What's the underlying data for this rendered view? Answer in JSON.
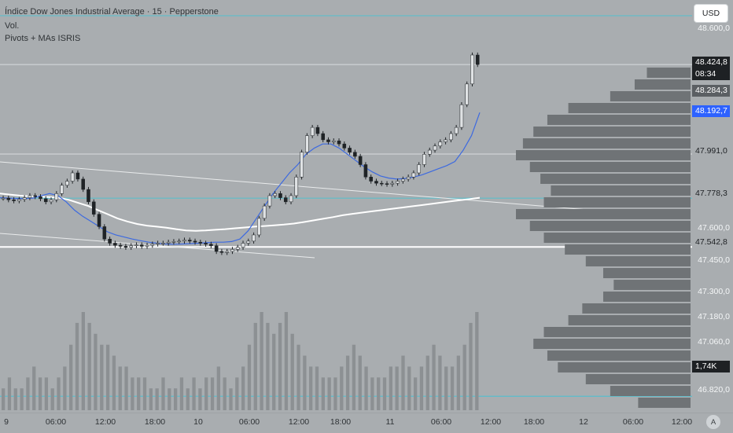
{
  "header": {
    "symbol_title": "Índice Dow Jones Industrial Average · 15 · Pepperstone",
    "indicator_1": "Vol.",
    "indicator_2": "Pivots + MAs ISRIS"
  },
  "currency_button": "USD",
  "auto_scale_label": "A",
  "price_axis": {
    "ticks": [
      "48.600,0",
      "47.991,0",
      "47.600,0",
      "47.450,0",
      "47.300,0",
      "47.180,0",
      "47.060,0",
      "46.820,0"
    ],
    "tags": {
      "last_price": "48.424,8",
      "countdown": "08:34",
      "pivot_r1": "48.284,3",
      "ma_blue": "48.192,7",
      "level_1": "47.991,0",
      "level_2": "47.778,3",
      "level_3": "47.542,8",
      "volume": "1,74K"
    }
  },
  "time_axis": {
    "labels": [
      "9",
      "06:00",
      "12:00",
      "18:00",
      "10",
      "06:00",
      "12:00",
      "18:00",
      "11",
      "06:00",
      "12:00",
      "18:00",
      "12",
      "06:00",
      "12:00"
    ]
  },
  "colors": {
    "background": "#a9adb0",
    "candle": "#1f2326",
    "ma_blue": "#3d6ae0",
    "ma_white": "#ffffff",
    "cyan_line": "#38c6d8",
    "volume_bar": "#8c9093",
    "profile_bar": "#6f7376",
    "tag_dark": "#1e2124",
    "tag_blue": "#2e62ff"
  },
  "chart_data": {
    "type": "candlestick",
    "close_series": [
      47778,
      47770,
      47765,
      47772,
      47780,
      47790,
      47785,
      47775,
      47760,
      47770,
      47800,
      47840,
      47860,
      47900,
      47870,
      47820,
      47760,
      47700,
      47640,
      47580,
      47560,
      47550,
      47545,
      47540,
      47548,
      47552,
      47545,
      47550,
      47556,
      47560,
      47560,
      47565,
      47568,
      47570,
      47575,
      47570,
      47565,
      47560,
      47555,
      47548,
      47520,
      47515,
      47520,
      47530,
      47540,
      47560,
      47570,
      47600,
      47680,
      47740,
      47790,
      47800,
      47780,
      47760,
      47790,
      47880,
      48000,
      48080,
      48120,
      48090,
      48060,
      48050,
      48055,
      48040,
      48020,
      48000,
      47980,
      47940,
      47880,
      47860,
      47850,
      47848,
      47845,
      47850,
      47860,
      47870,
      47880,
      47900,
      47940,
      47990,
      48010,
      48030,
      48050,
      48060,
      48090,
      48120,
      48230,
      48330,
      48470,
      48424
    ],
    "ma_blue": [
      47780,
      47778,
      47776,
      47776,
      47778,
      47790,
      47800,
      47790,
      47760,
      47720,
      47690,
      47665,
      47640,
      47615,
      47600,
      47590,
      47580,
      47572,
      47565,
      47560,
      47556,
      47555,
      47556,
      47558,
      47560,
      47562,
      47565,
      47565,
      47568,
      47580,
      47620,
      47680,
      47740,
      47800,
      47850,
      47900,
      47940,
      47990,
      48020,
      48040,
      48040,
      48020,
      47990,
      47960,
      47930,
      47905,
      47885,
      47875,
      47870,
      47873,
      47880,
      47890,
      47905,
      47920,
      47935,
      47955,
      48010,
      48080,
      48192
    ],
    "ma_white": [
      47800,
      47795,
      47790,
      47787,
      47785,
      47783,
      47780,
      47770,
      47755,
      47740,
      47720,
      47700,
      47680,
      47665,
      47653,
      47645,
      47640,
      47635,
      47628,
      47622,
      47620,
      47622,
      47625,
      47628,
      47632,
      47636,
      47640,
      47643,
      47646,
      47650,
      47655,
      47662,
      47670,
      47678,
      47686,
      47695,
      47702,
      47708,
      47714,
      47720,
      47726,
      47732,
      47738,
      47744,
      47750,
      47756,
      47762,
      47768,
      47774,
      47780
    ],
    "volume": [
      2,
      3,
      2,
      2,
      3,
      4,
      3,
      3,
      2,
      3,
      4,
      6,
      8,
      9,
      8,
      7,
      6,
      6,
      5,
      4,
      4,
      3,
      3,
      3,
      2,
      2,
      3,
      2,
      2,
      3,
      2,
      3,
      2,
      3,
      3,
      4,
      3,
      2,
      3,
      4,
      6,
      8,
      9,
      8,
      7,
      8,
      9,
      7,
      6,
      5,
      4,
      4,
      3,
      3,
      3,
      4,
      5,
      6,
      5,
      4,
      3,
      3,
      3,
      4,
      4,
      5,
      4,
      3,
      4,
      5,
      6,
      5,
      4,
      4,
      5,
      6,
      8,
      9
    ],
    "volume_profile": [
      0.25,
      0.32,
      0.46,
      0.7,
      0.82,
      0.9,
      0.96,
      1.0,
      0.92,
      0.86,
      0.8,
      0.84,
      1.0,
      0.92,
      0.84,
      0.72,
      0.6,
      0.5,
      0.44,
      0.5,
      0.62,
      0.7,
      0.84,
      0.9,
      0.82,
      0.76,
      0.6,
      0.46,
      0.3
    ],
    "y_range": [
      46760,
      48660
    ]
  }
}
